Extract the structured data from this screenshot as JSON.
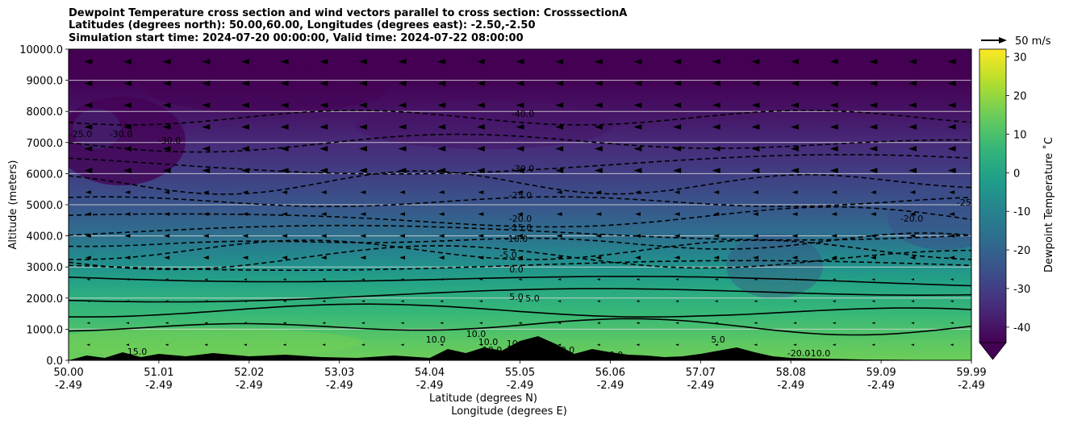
{
  "title_lines": [
    "Dewpoint Temperature cross section and wind vectors parallel to cross section: CrosssectionA",
    "Latitudes (degrees north): 50.00,60.00, Longitudes (degrees east): -2.50,-2.50",
    "Simulation start time: 2024-07-20 00:00:00, Valid time: 2024-07-22 08:00:00"
  ],
  "chart_data": {
    "type": "heatmap",
    "subtype": "contour cross-section with wind quiver",
    "title": "Dewpoint Temperature cross section and wind vectors parallel to cross section: CrosssectionA",
    "x_ticks": [
      {
        "lat": "50.00",
        "lon": "-2.49"
      },
      {
        "lat": "51.01",
        "lon": "-2.49"
      },
      {
        "lat": "52.02",
        "lon": "-2.49"
      },
      {
        "lat": "53.03",
        "lon": "-2.49"
      },
      {
        "lat": "54.04",
        "lon": "-2.49"
      },
      {
        "lat": "55.05",
        "lon": "-2.49"
      },
      {
        "lat": "56.06",
        "lon": "-2.49"
      },
      {
        "lat": "57.07",
        "lon": "-2.49"
      },
      {
        "lat": "58.08",
        "lon": "-2.49"
      },
      {
        "lat": "59.09",
        "lon": "-2.49"
      },
      {
        "lat": "59.99",
        "lon": "-2.49"
      }
    ],
    "xlabel": "Latitude (degrees N)",
    "xlabel2": "Longitude (degrees E)",
    "ylabel": "Altitude (meters)",
    "ylim": [
      0,
      10000
    ],
    "y_ticks": [
      "0.0",
      "1000.0",
      "2000.0",
      "3000.0",
      "4000.0",
      "5000.0",
      "6000.0",
      "7000.0",
      "8000.0",
      "9000.0",
      "10000.0"
    ],
    "grid": "horizontal",
    "quiver_key": "50 m/s",
    "colorbar": {
      "label": "Dewpoint Temperature ˚C",
      "ticks": [
        "-40",
        "-30",
        "-20",
        "-10",
        "0",
        "10",
        "20",
        "30"
      ],
      "range": [
        -44,
        32
      ],
      "extend": "min",
      "colormap": "viridis"
    },
    "dewpoint_profile": {
      "altitude_m": [
        0,
        500,
        1000,
        1500,
        2000,
        2500,
        3000,
        3500,
        4000,
        5000,
        6000,
        7000,
        8000,
        9000,
        10000
      ],
      "dewpoint_c": [
        15,
        13,
        10,
        7,
        4,
        0,
        -5,
        -10,
        -16,
        -24,
        -30,
        -35,
        -40,
        -44,
        -44
      ]
    },
    "contour_labels": [
      "15.0",
      "10.0",
      "10.0",
      "10.0",
      "10.0",
      "10.0",
      "10.0",
      "10.0",
      "5.0",
      "5.0",
      "5.0",
      "0.0",
      "-5.0",
      "-10.0",
      "-15.0",
      "-20.0",
      "-25.0",
      "-30.0",
      "-40.0",
      "-25.0",
      "-30.0",
      "-30.0",
      "-20.0",
      "-25.0",
      "-20.0",
      "-10.0"
    ]
  }
}
